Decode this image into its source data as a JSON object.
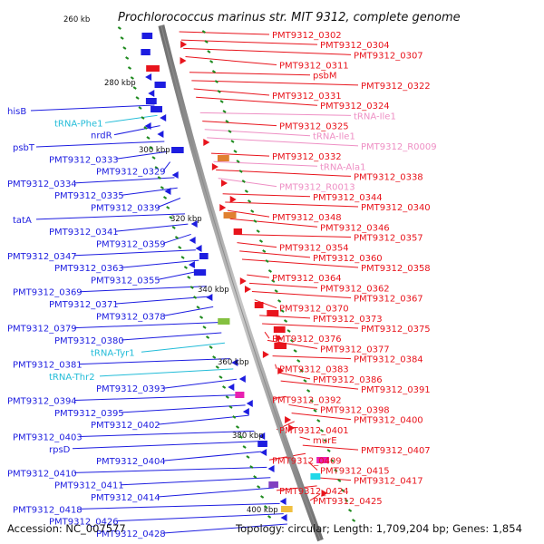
{
  "title": "Prochlorococcus marinus str. MIT 9312, complete genome",
  "footer": {
    "accession": "Accession: NC_007577",
    "summary": "Topology: circular; Length: 1,709,204 bp; Genes: 1,854"
  },
  "colors": {
    "forward": "#e8141c",
    "reverse": "#1d1de0",
    "trna_forward": "#ee8fc4",
    "trna_reverse": "#22bcd8",
    "backbone": "#8c8c8c",
    "tick_dash": "#1e8a1e"
  },
  "ticks": [
    "260 kb",
    "280 kbp",
    "300 kbp",
    "320 kbp",
    "340 kbp",
    "360 kbp",
    "380 kbp",
    "400 kbp"
  ],
  "genes_right": [
    {
      "text": "PMT9312_0302"
    },
    {
      "text": "PMT9312_0304"
    },
    {
      "text": "PMT9312_0307"
    },
    {
      "text": "PMT9312_0311"
    },
    {
      "text": "psbM"
    },
    {
      "text": "PMT9312_0322"
    },
    {
      "text": "PMT9312_0331"
    },
    {
      "text": "PMT9312_0324"
    },
    {
      "text": "tRNA-Ile1"
    },
    {
      "text": "PMT9312_0325"
    },
    {
      "text": "tRNA-Ile1"
    },
    {
      "text": "PMT9312_R0009"
    },
    {
      "text": "PMT9312_0332"
    },
    {
      "text": "tRNA-Ala1"
    },
    {
      "text": "PMT9312_0338"
    },
    {
      "text": "PMT9312_R0013"
    },
    {
      "text": "PMT9312_0344"
    },
    {
      "text": "PMT9312_0340"
    },
    {
      "text": "PMT9312_0348"
    },
    {
      "text": "PMT9312_0346"
    },
    {
      "text": "PMT9312_0357"
    },
    {
      "text": "PMT9312_0354"
    },
    {
      "text": "PMT9312_0360"
    },
    {
      "text": "PMT9312_0358"
    },
    {
      "text": "PMT9312_0364"
    },
    {
      "text": "PMT9312_0362"
    },
    {
      "text": "PMT9312_0367"
    },
    {
      "text": "PMT9312_0370"
    },
    {
      "text": "PMT9312_0373"
    },
    {
      "text": "PMT9312_0375"
    },
    {
      "text": "PMT9312_0376"
    },
    {
      "text": "PMT9312_0377"
    },
    {
      "text": "PMT9312_0384"
    },
    {
      "text": "PMT9312_0383"
    },
    {
      "text": "PMT9312_0386"
    },
    {
      "text": "PMT9312_0391"
    },
    {
      "text": "PMT9312_0392"
    },
    {
      "text": "PMT9312_0398"
    },
    {
      "text": "PMT9312_0400"
    },
    {
      "text": "PMT9312_0401"
    },
    {
      "text": "murE"
    },
    {
      "text": "PMT9312_0407"
    },
    {
      "text": "PMT9312_0409"
    },
    {
      "text": "PMT9312_0415"
    },
    {
      "text": "PMT9312_0417"
    },
    {
      "text": "PMT9312_0424"
    },
    {
      "text": "PMT9312_0425"
    }
  ],
  "genes_left": [
    {
      "text": "hisB"
    },
    {
      "text": "tRNA-Phe1"
    },
    {
      "text": "nrdR"
    },
    {
      "text": "psbT"
    },
    {
      "text": "PMT9312_0333"
    },
    {
      "text": "PMT9312_0329"
    },
    {
      "text": "PMT9312_0334"
    },
    {
      "text": "PMT9312_0335"
    },
    {
      "text": "PMT9312_0339"
    },
    {
      "text": "tatA"
    },
    {
      "text": "PMT9312_0341"
    },
    {
      "text": "PMT9312_0359"
    },
    {
      "text": "PMT9312_0347"
    },
    {
      "text": "PMT9312_0363"
    },
    {
      "text": "PMT9312_0355"
    },
    {
      "text": "PMT9312_0369"
    },
    {
      "text": "PMT9312_0371"
    },
    {
      "text": "PMT9312_0378"
    },
    {
      "text": "PMT9312_0379"
    },
    {
      "text": "PMT9312_0380"
    },
    {
      "text": "tRNA-Tyr1"
    },
    {
      "text": "PMT9312_0381"
    },
    {
      "text": "tRNA-Thr2"
    },
    {
      "text": "PMT9312_0393"
    },
    {
      "text": "PMT9312_0394"
    },
    {
      "text": "PMT9312_0395"
    },
    {
      "text": "PMT9312_0402"
    },
    {
      "text": "PMT9312_0403"
    },
    {
      "text": "rpsD"
    },
    {
      "text": "PMT9312_0404"
    },
    {
      "text": "PMT9312_0410"
    },
    {
      "text": "PMT9312_0411"
    },
    {
      "text": "PMT9312_0414"
    },
    {
      "text": "PMT9312_0418"
    },
    {
      "text": "PMT9312_0426"
    },
    {
      "text": "PMT9312_0428"
    }
  ]
}
